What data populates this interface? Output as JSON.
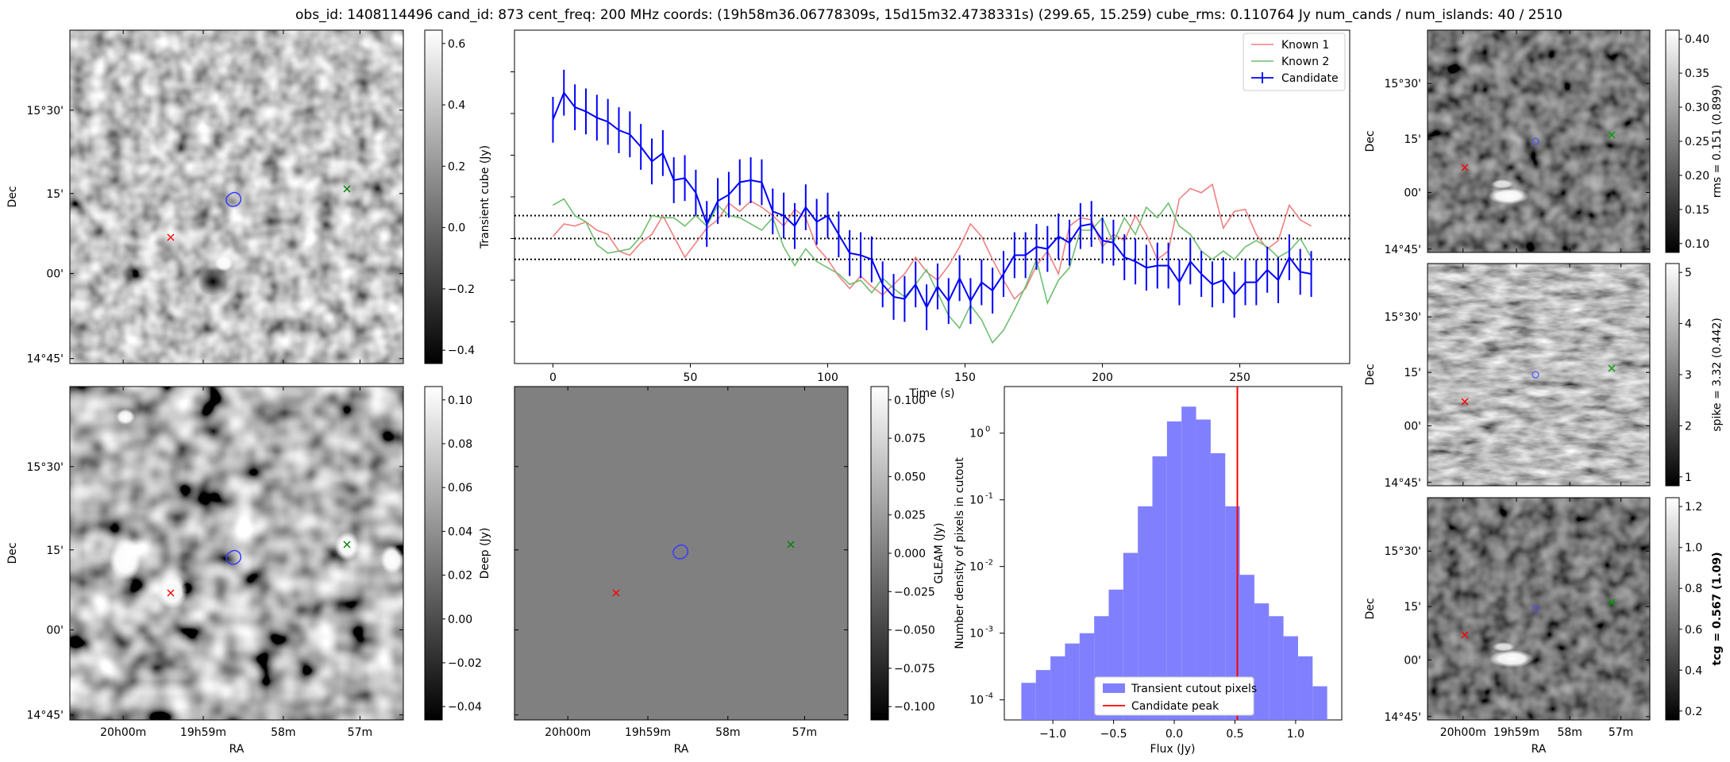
{
  "header": {
    "title": "obs_id: 1408114496 cand_id: 873 cent_freq: 200 MHz coords: (19h58m36.06778309s, 15d15m32.4738331s) (299.65, 15.259) cube_rms: 0.110764 Jy num_cands / num_islands: 40 / 2510"
  },
  "sky_axes": {
    "ra_ticks": [
      "20h00m",
      "19h59m",
      "58m",
      "57m"
    ],
    "dec_ticks": [
      "15°30'",
      "15'",
      "00'",
      "14°45'"
    ],
    "ra_label": "RA",
    "dec_label": "Dec"
  },
  "panels": {
    "transient": {
      "colorbar_label": "Transient cube (Jy)",
      "colorbar_ticks": [
        "0.6",
        "0.4",
        "0.2",
        "0.0",
        "−0.2",
        "−0.4"
      ]
    },
    "deep": {
      "colorbar_label": "Deep (Jy)",
      "colorbar_ticks": [
        "0.10",
        "0.08",
        "0.06",
        "0.04",
        "0.02",
        "0.00",
        "−0.02",
        "−0.04"
      ]
    },
    "gleam": {
      "colorbar_label": "GLEAM (Jy)",
      "colorbar_ticks": [
        "0.100",
        "0.075",
        "0.050",
        "0.025",
        "0.000",
        "−0.025",
        "−0.050",
        "−0.075",
        "−0.100"
      ]
    },
    "rms": {
      "colorbar_label": "rms = 0.151 (0.899)",
      "colorbar_ticks": [
        "0.40",
        "0.35",
        "0.30",
        "0.25",
        "0.20",
        "0.15",
        "0.10"
      ]
    },
    "spike": {
      "colorbar_label": "spike = 3.32 (0.442)",
      "colorbar_ticks": [
        "5",
        "4",
        "3",
        "2",
        "1"
      ]
    },
    "tcg": {
      "colorbar_label": "tcg = 0.567 (1.09)",
      "colorbar_ticks": [
        "1.2",
        "1.0",
        "0.8",
        "0.6",
        "0.4",
        "0.2"
      ]
    }
  },
  "colors": {
    "candidate": "#0000ff",
    "known1": "#f08080",
    "known2": "#6fbf6f",
    "hist": "#8080ff",
    "peak": "#ff0000",
    "marker_red": "#ff0000",
    "marker_green": "#008000"
  },
  "chart_data": [
    {
      "type": "line",
      "xlabel": "Time (s)",
      "ylabel": "",
      "xlim": [
        -14,
        290
      ],
      "ylim": [
        -0.6,
        1.0
      ],
      "x_ticks": [
        0,
        50,
        100,
        150,
        200,
        250
      ],
      "hlines": [
        -0.1,
        0.0,
        0.11
      ],
      "legend": "top-right",
      "series": [
        {
          "name": "Known 1",
          "x": [
            0,
            4,
            8,
            12,
            16,
            20,
            24,
            28,
            32,
            36,
            40,
            44,
            48,
            52,
            56,
            60,
            64,
            68,
            72,
            76,
            80,
            84,
            88,
            92,
            96,
            100,
            104,
            108,
            112,
            116,
            120,
            124,
            128,
            132,
            136,
            140,
            144,
            148,
            152,
            156,
            160,
            164,
            168,
            172,
            176,
            180,
            184,
            188,
            192,
            196,
            200,
            204,
            208,
            212,
            216,
            220,
            224,
            228,
            232,
            236,
            240,
            244,
            248,
            252,
            256,
            260,
            264,
            268,
            272,
            276
          ],
          "y": [
            0.01,
            0.07,
            0.06,
            0.08,
            0.04,
            0.02,
            -0.06,
            -0.08,
            -0.02,
            0.02,
            0.11,
            0.01,
            -0.09,
            -0.02,
            0.05,
            0.09,
            0.17,
            0.13,
            0.18,
            0.15,
            0.11,
            0.06,
            0.14,
            0.1,
            -0.04,
            -0.1,
            -0.18,
            -0.24,
            -0.18,
            -0.23,
            -0.27,
            -0.22,
            -0.17,
            -0.09,
            -0.16,
            -0.2,
            -0.13,
            -0.04,
            0.07,
            0.01,
            -0.1,
            -0.2,
            -0.29,
            -0.24,
            -0.13,
            -0.06,
            -0.17,
            0.06,
            0.1,
            0.09,
            -0.04,
            0.02,
            -0.01,
            0.11,
            0.02,
            -0.1,
            -0.06,
            0.19,
            0.24,
            0.22,
            0.26,
            0.05,
            0.13,
            0.14,
            0.02,
            -0.05,
            -0.01,
            0.16,
            0.09,
            0.06
          ]
        },
        {
          "name": "Known 2",
          "x": [
            0,
            4,
            8,
            12,
            16,
            20,
            24,
            28,
            32,
            36,
            40,
            44,
            48,
            52,
            56,
            60,
            64,
            68,
            72,
            76,
            80,
            84,
            88,
            92,
            96,
            100,
            104,
            108,
            112,
            116,
            120,
            124,
            128,
            132,
            136,
            140,
            144,
            148,
            152,
            156,
            160,
            164,
            168,
            172,
            176,
            180,
            184,
            188,
            192,
            196,
            200,
            204,
            208,
            212,
            216,
            220,
            224,
            228,
            232,
            236,
            240,
            244,
            248,
            252,
            256,
            260,
            264,
            268,
            272,
            276
          ],
          "y": [
            0.16,
            0.19,
            0.11,
            0.08,
            -0.03,
            -0.07,
            -0.06,
            -0.05,
            0.01,
            0.11,
            0.1,
            0.1,
            0.06,
            0.11,
            0.06,
            0.16,
            0.11,
            0.1,
            0.07,
            0.04,
            0.1,
            -0.04,
            -0.13,
            -0.05,
            -0.11,
            -0.14,
            -0.17,
            -0.22,
            -0.2,
            -0.26,
            -0.19,
            -0.24,
            -0.28,
            -0.22,
            -0.15,
            -0.26,
            -0.37,
            -0.43,
            -0.32,
            -0.39,
            -0.5,
            -0.44,
            -0.34,
            -0.23,
            -0.1,
            -0.31,
            -0.2,
            -0.14,
            0.04,
            0.04,
            0.1,
            -0.02,
            0.1,
            0.02,
            0.15,
            0.1,
            0.17,
            0.06,
            0.02,
            -0.06,
            -0.1,
            -0.06,
            -0.1,
            -0.04,
            -0.01,
            -0.04,
            -0.09,
            -0.06,
            0.0,
            -0.09
          ]
        },
        {
          "name": "Candidate",
          "x": [
            0,
            4,
            8,
            12,
            16,
            20,
            24,
            28,
            32,
            36,
            40,
            44,
            48,
            52,
            56,
            60,
            64,
            68,
            72,
            76,
            80,
            84,
            88,
            92,
            96,
            100,
            104,
            108,
            112,
            116,
            120,
            124,
            128,
            132,
            136,
            140,
            144,
            148,
            152,
            156,
            160,
            164,
            168,
            172,
            176,
            180,
            184,
            188,
            192,
            196,
            200,
            204,
            208,
            212,
            216,
            220,
            224,
            228,
            232,
            236,
            240,
            244,
            248,
            252,
            256,
            260,
            264,
            268,
            272,
            276
          ],
          "y": [
            0.57,
            0.7,
            0.63,
            0.61,
            0.58,
            0.56,
            0.52,
            0.5,
            0.44,
            0.37,
            0.41,
            0.28,
            0.29,
            0.22,
            0.07,
            0.18,
            0.21,
            0.27,
            0.28,
            0.27,
            0.13,
            0.11,
            0.06,
            0.15,
            0.08,
            0.11,
            0.02,
            -0.07,
            -0.08,
            -0.1,
            -0.22,
            -0.28,
            -0.29,
            -0.22,
            -0.33,
            -0.23,
            -0.3,
            -0.19,
            -0.3,
            -0.21,
            -0.25,
            -0.17,
            -0.08,
            -0.08,
            -0.04,
            -0.05,
            0.01,
            -0.02,
            0.06,
            0.07,
            -0.01,
            -0.02,
            -0.09,
            -0.11,
            -0.14,
            -0.13,
            -0.13,
            -0.21,
            -0.11,
            -0.17,
            -0.22,
            -0.2,
            -0.27,
            -0.21,
            -0.21,
            -0.15,
            -0.2,
            -0.09,
            -0.16,
            -0.17
          ],
          "yerr": 0.11
        }
      ]
    },
    {
      "type": "bar",
      "title": "",
      "xlabel": "Flux (Jy)",
      "ylabel": "Number density of pixels in cutout",
      "yscale": "log",
      "ylim": [
        5e-05,
        5
      ],
      "xlim": [
        -1.4,
        1.38
      ],
      "x_ticks": [
        -1.0,
        -0.5,
        0.0,
        0.5,
        1.0
      ],
      "x_tick_labels": [
        "−1.0",
        "−0.5",
        "0.0",
        "0.5",
        "1.0"
      ],
      "y_tick_labels": [
        "10^0",
        "10^-1",
        "10^-2",
        "10^-3",
        "10^-4"
      ],
      "bin_edges": [
        -1.26,
        -1.14,
        -1.02,
        -0.9,
        -0.78,
        -0.66,
        -0.54,
        -0.42,
        -0.3,
        -0.18,
        -0.06,
        0.06,
        0.18,
        0.3,
        0.42,
        0.54,
        0.66,
        0.78,
        0.9,
        1.02,
        1.14,
        1.26
      ],
      "series": [
        {
          "name": "Transient cutout pixels",
          "values": [
            0.00018,
            0.00028,
            0.00045,
            0.0007,
            0.001,
            0.0018,
            0.0045,
            0.016,
            0.08,
            0.45,
            1.5,
            2.5,
            1.6,
            0.5,
            0.08,
            0.0075,
            0.0028,
            0.0018,
            0.0009,
            0.00045,
            0.00016
          ]
        }
      ],
      "vline": {
        "name": "Candidate peak",
        "x": 0.52
      },
      "legend": "bottom-center"
    }
  ]
}
